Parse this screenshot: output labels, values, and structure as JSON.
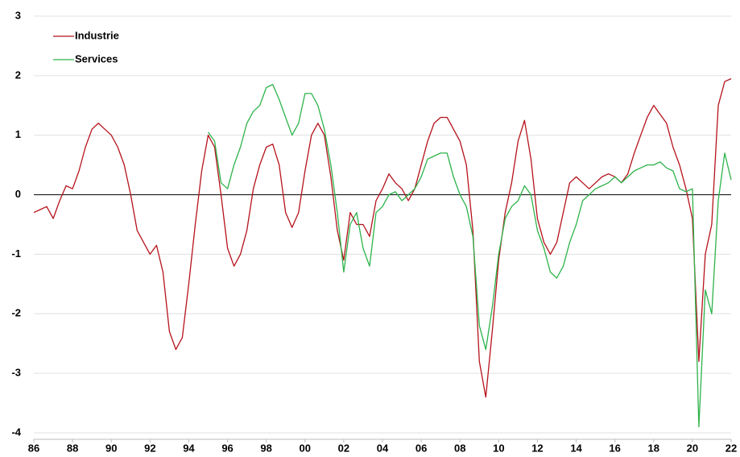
{
  "chart_data": {
    "type": "line",
    "categories": [
      "86",
      null,
      null,
      null,
      null,
      null,
      "88",
      null,
      null,
      null,
      null,
      null,
      "90",
      null,
      null,
      null,
      null,
      null,
      "92",
      null,
      null,
      null,
      null,
      null,
      "94",
      null,
      null,
      null,
      null,
      null,
      "96",
      null,
      null,
      null,
      null,
      null,
      "98",
      null,
      null,
      null,
      null,
      null,
      "00",
      null,
      null,
      null,
      null,
      null,
      "02",
      null,
      null,
      null,
      null,
      null,
      "04",
      null,
      null,
      null,
      null,
      null,
      "06",
      null,
      null,
      null,
      null,
      null,
      "08",
      null,
      null,
      null,
      null,
      null,
      "10",
      null,
      null,
      null,
      null,
      null,
      "12",
      null,
      null,
      null,
      null,
      null,
      "14",
      null,
      null,
      null,
      null,
      null,
      "16",
      null,
      null,
      null,
      null,
      null,
      "18",
      null,
      null,
      null,
      null,
      null,
      "20",
      null,
      null,
      null,
      null,
      null,
      "22"
    ],
    "series": [
      {
        "name": "Industrie",
        "color": "#b5121b",
        "values": [
          -0.3,
          -0.25,
          -0.2,
          -0.4,
          -0.1,
          0.15,
          0.1,
          0.4,
          0.8,
          1.1,
          1.2,
          1.1,
          1.0,
          0.8,
          0.5,
          0.0,
          -0.6,
          -0.8,
          -1.0,
          -0.85,
          -1.3,
          -2.3,
          -2.6,
          -2.4,
          -1.5,
          -0.5,
          0.4,
          1.0,
          0.8,
          0.0,
          -0.9,
          -1.2,
          -1.0,
          -0.6,
          0.1,
          0.5,
          0.8,
          0.85,
          0.5,
          -0.3,
          -0.55,
          -0.3,
          0.4,
          1.0,
          1.2,
          1.0,
          0.3,
          -0.6,
          -1.1,
          -0.3,
          -0.5,
          -0.5,
          -0.7,
          -0.1,
          0.1,
          0.35,
          0.2,
          0.1,
          -0.1,
          0.1,
          0.5,
          0.9,
          1.2,
          1.3,
          1.3,
          1.1,
          0.9,
          0.5,
          -0.6,
          -2.8,
          -3.4,
          -2.3,
          -1.1,
          -0.3,
          0.2,
          0.9,
          1.25,
          0.6,
          -0.4,
          -0.8,
          -1.0,
          -0.8,
          -0.3,
          0.2,
          0.3,
          0.2,
          0.1,
          0.2,
          0.3,
          0.35,
          0.3,
          0.2,
          0.35,
          0.7,
          1.0,
          1.3,
          1.5,
          1.35,
          1.2,
          0.8,
          0.5,
          0.1,
          -0.4,
          -2.8,
          -1.0,
          -0.5,
          1.5,
          1.9,
          1.95
        ]
      },
      {
        "name": "Services",
        "color": "#2db34a",
        "values": [
          null,
          null,
          null,
          null,
          null,
          null,
          null,
          null,
          null,
          null,
          null,
          null,
          null,
          null,
          null,
          null,
          null,
          null,
          null,
          null,
          null,
          null,
          null,
          null,
          null,
          null,
          null,
          1.05,
          0.9,
          0.2,
          0.1,
          0.5,
          0.8,
          1.2,
          1.4,
          1.5,
          1.8,
          1.85,
          1.6,
          1.3,
          1.0,
          1.2,
          1.7,
          1.7,
          1.5,
          1.1,
          0.5,
          -0.3,
          -1.3,
          -0.5,
          -0.3,
          -0.9,
          -1.2,
          -0.3,
          -0.2,
          0.0,
          0.05,
          -0.1,
          0.0,
          0.1,
          0.3,
          0.6,
          0.65,
          0.7,
          0.7,
          0.3,
          0.0,
          -0.2,
          -0.7,
          -2.2,
          -2.6,
          -1.9,
          -1.0,
          -0.4,
          -0.2,
          -0.1,
          0.15,
          0.0,
          -0.6,
          -0.9,
          -1.3,
          -1.4,
          -1.2,
          -0.8,
          -0.5,
          -0.1,
          0.0,
          0.1,
          0.15,
          0.2,
          0.3,
          0.2,
          0.3,
          0.4,
          0.45,
          0.5,
          0.5,
          0.55,
          0.45,
          0.4,
          0.1,
          0.05,
          0.1,
          -3.9,
          -1.6,
          -2.0,
          -0.1,
          0.7,
          0.25
        ]
      }
    ],
    "ylim": [
      -4,
      3
    ],
    "yticks": [
      -4,
      -3,
      -2,
      -1,
      0,
      1,
      2,
      3
    ],
    "grid": true,
    "legend": "upper-left"
  }
}
